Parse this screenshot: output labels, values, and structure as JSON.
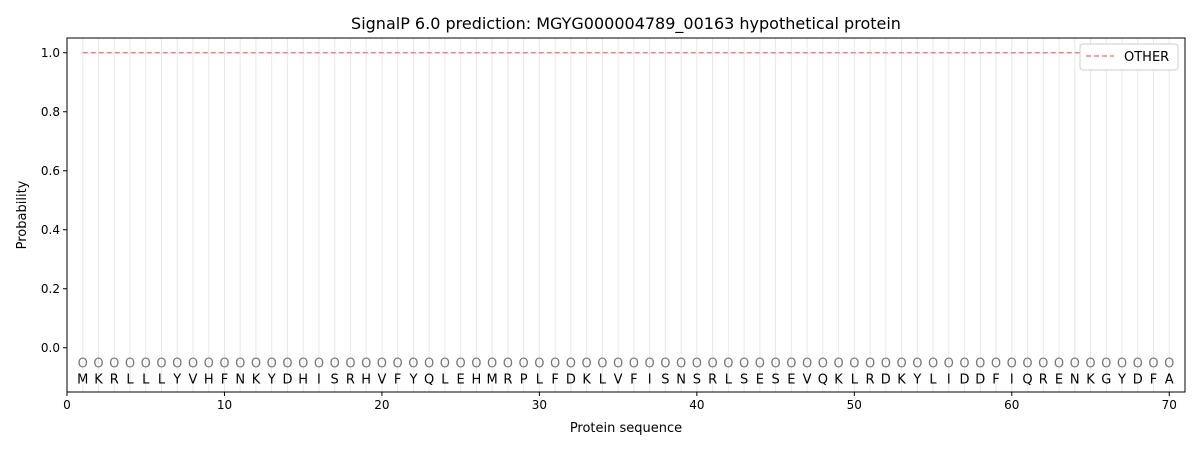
{
  "chart_data": {
    "type": "line",
    "title": "SignalP 6.0 prediction: MGYG000004789_00163 hypothetical protein",
    "xlabel": "Protein sequence",
    "ylabel": "Probability",
    "xlim": [
      0,
      71
    ],
    "ylim": [
      -0.15,
      1.05
    ],
    "xticks": [
      0,
      10,
      20,
      30,
      40,
      50,
      60,
      70
    ],
    "yticks": [
      0.0,
      0.2,
      0.4,
      0.6,
      0.8,
      1.0
    ],
    "ytick_labels": [
      "0.0",
      "0.2",
      "0.4",
      "0.6",
      "0.8",
      "1.0"
    ],
    "grid": "vertical lines at each residue",
    "legend_placement": "top-right",
    "sequence": [
      "M",
      "K",
      "R",
      "L",
      "L",
      "L",
      "Y",
      "V",
      "H",
      "F",
      "N",
      "K",
      "Y",
      "D",
      "H",
      "I",
      "S",
      "R",
      "H",
      "V",
      "F",
      "Y",
      "Q",
      "L",
      "E",
      "H",
      "M",
      "R",
      "P",
      "L",
      "F",
      "D",
      "K",
      "L",
      "V",
      "F",
      "I",
      "S",
      "N",
      "S",
      "R",
      "L",
      "S",
      "E",
      "S",
      "E",
      "V",
      "Q",
      "K",
      "L",
      "R",
      "D",
      "K",
      "Y",
      "L",
      "I",
      "D",
      "D",
      "F",
      "I",
      "Q",
      "R",
      "E",
      "N",
      "K",
      "G",
      "Y",
      "D",
      "F",
      "A"
    ],
    "predicted_labels": "OOOOOOOOOOOOOOOOOOOOOOOOOOOOOOOOOOOOOOOOOOOOOOOOOOOOOOOOOOOOOOOOOOOOOO",
    "series": [
      {
        "name": "OTHER",
        "color": "#f08080",
        "style": "dashed",
        "x_start": 1,
        "x_end": 70,
        "value": 1.0
      }
    ]
  }
}
